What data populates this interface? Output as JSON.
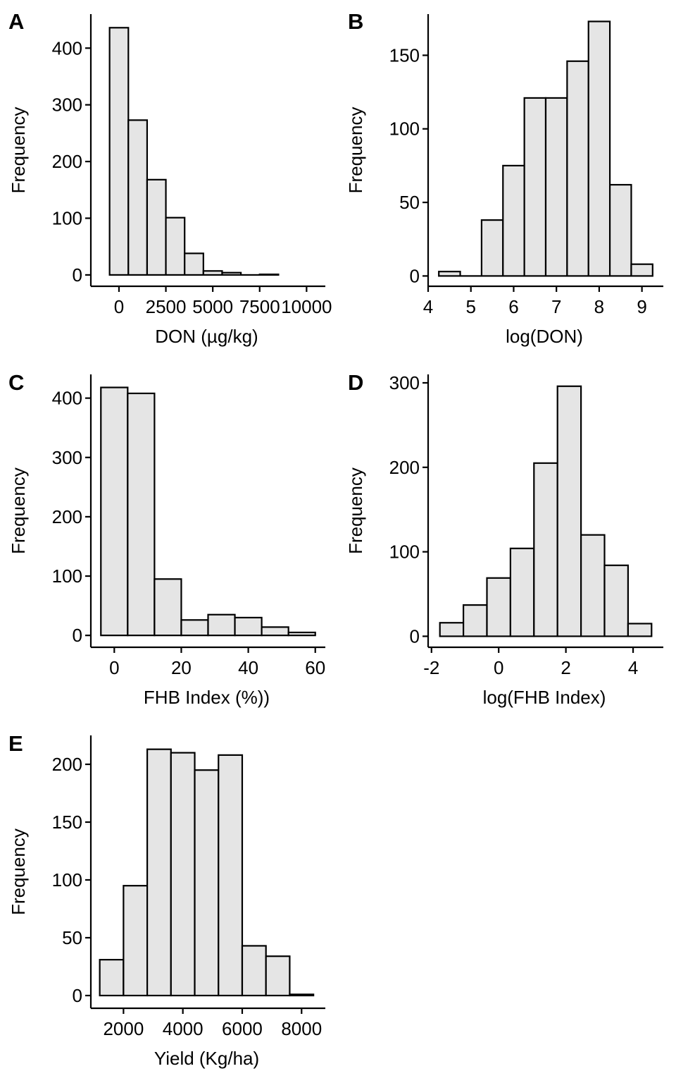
{
  "colors": {
    "bar_fill": "#e5e5e5",
    "bar_outline": "#000000",
    "axis": "#000000"
  },
  "chart_data": [
    {
      "type": "bar",
      "panel": "A",
      "xlabel": "DON (µg/kg)",
      "ylabel": "Frequency",
      "xlim": [
        -1500,
        11000
      ],
      "ylim": [
        -20,
        460
      ],
      "xticks": [
        0,
        2500,
        5000,
        7500,
        10000
      ],
      "xtick_labels": [
        "0",
        "2500",
        "5000",
        "7500",
        "10000"
      ],
      "yticks": [
        0,
        100,
        200,
        300,
        400
      ],
      "ytick_labels": [
        "0",
        "100",
        "200",
        "300",
        "400"
      ],
      "bins": [
        {
          "x0": -500,
          "x1": 500,
          "count": 436
        },
        {
          "x0": 500,
          "x1": 1500,
          "count": 273
        },
        {
          "x0": 1500,
          "x1": 2500,
          "count": 168
        },
        {
          "x0": 2500,
          "x1": 3500,
          "count": 101
        },
        {
          "x0": 3500,
          "x1": 4500,
          "count": 38
        },
        {
          "x0": 4500,
          "x1": 5500,
          "count": 7
        },
        {
          "x0": 5500,
          "x1": 6500,
          "count": 4
        },
        {
          "x0": 6500,
          "x1": 7500,
          "count": 0
        },
        {
          "x0": 7500,
          "x1": 8500,
          "count": 1
        }
      ]
    },
    {
      "type": "bar",
      "panel": "B",
      "xlabel": "log(DON)",
      "ylabel": "Frequency",
      "xlim": [
        4,
        9.5
      ],
      "ylim": [
        -7,
        178
      ],
      "xticks": [
        4,
        5,
        6,
        7,
        8,
        9
      ],
      "xtick_labels": [
        "4",
        "5",
        "6",
        "7",
        "8",
        "9"
      ],
      "yticks": [
        0,
        50,
        100,
        150
      ],
      "ytick_labels": [
        "0",
        "50",
        "100",
        "150"
      ],
      "bins": [
        {
          "x0": 4.25,
          "x1": 4.75,
          "count": 3
        },
        {
          "x0": 4.75,
          "x1": 5.25,
          "count": 0
        },
        {
          "x0": 5.25,
          "x1": 5.75,
          "count": 38
        },
        {
          "x0": 5.75,
          "x1": 6.25,
          "count": 75
        },
        {
          "x0": 6.25,
          "x1": 6.75,
          "count": 121
        },
        {
          "x0": 6.75,
          "x1": 7.25,
          "count": 121
        },
        {
          "x0": 7.25,
          "x1": 7.75,
          "count": 146
        },
        {
          "x0": 7.75,
          "x1": 8.25,
          "count": 173
        },
        {
          "x0": 8.25,
          "x1": 8.75,
          "count": 62
        },
        {
          "x0": 8.75,
          "x1": 9.25,
          "count": 8
        }
      ]
    },
    {
      "type": "bar",
      "panel": "C",
      "xlabel": "FHB Index (%))",
      "ylabel": "Frequency",
      "xlim": [
        -7,
        63
      ],
      "ylim": [
        -20,
        440
      ],
      "xticks": [
        0,
        20,
        40,
        60
      ],
      "xtick_labels": [
        "0",
        "20",
        "40",
        "60"
      ],
      "yticks": [
        0,
        100,
        200,
        300,
        400
      ],
      "ytick_labels": [
        "0",
        "100",
        "200",
        "300",
        "400"
      ],
      "bins": [
        {
          "x0": -4,
          "x1": 4,
          "count": 418
        },
        {
          "x0": 4,
          "x1": 12,
          "count": 408
        },
        {
          "x0": 12,
          "x1": 20,
          "count": 95
        },
        {
          "x0": 20,
          "x1": 28,
          "count": 26
        },
        {
          "x0": 28,
          "x1": 36,
          "count": 35
        },
        {
          "x0": 36,
          "x1": 44,
          "count": 30
        },
        {
          "x0": 44,
          "x1": 52,
          "count": 14
        },
        {
          "x0": 52,
          "x1": 60,
          "count": 5
        }
      ]
    },
    {
      "type": "bar",
      "panel": "D",
      "xlabel": "log(FHB Index)",
      "ylabel": "Frequency",
      "xlim": [
        -2.1,
        4.9
      ],
      "ylim": [
        -13,
        310
      ],
      "xticks": [
        -2,
        0,
        2,
        4
      ],
      "xtick_labels": [
        "-2",
        "0",
        "2",
        "4"
      ],
      "yticks": [
        0,
        100,
        200,
        300
      ],
      "ytick_labels": [
        "0",
        "100",
        "200",
        "300"
      ],
      "bins": [
        {
          "x0": -1.75,
          "x1": -1.05,
          "count": 16
        },
        {
          "x0": -1.05,
          "x1": -0.35,
          "count": 37
        },
        {
          "x0": -0.35,
          "x1": 0.35,
          "count": 69
        },
        {
          "x0": 0.35,
          "x1": 1.05,
          "count": 104
        },
        {
          "x0": 1.05,
          "x1": 1.75,
          "count": 205
        },
        {
          "x0": 1.75,
          "x1": 2.45,
          "count": 296
        },
        {
          "x0": 2.45,
          "x1": 3.15,
          "count": 120
        },
        {
          "x0": 3.15,
          "x1": 3.85,
          "count": 84
        },
        {
          "x0": 3.85,
          "x1": 4.55,
          "count": 15
        }
      ]
    },
    {
      "type": "bar",
      "panel": "E",
      "xlabel": "Yield (Kg/ha)",
      "ylabel": "Frequency",
      "xlim": [
        900,
        8800
      ],
      "ylim": [
        -11,
        225
      ],
      "xticks": [
        2000,
        4000,
        6000,
        8000
      ],
      "xtick_labels": [
        "2000",
        "4000",
        "6000",
        "8000"
      ],
      "yticks": [
        0,
        50,
        100,
        150,
        200
      ],
      "ytick_labels": [
        "0",
        "50",
        "100",
        "150",
        "200"
      ],
      "bins": [
        {
          "x0": 1200,
          "x1": 2000,
          "count": 31
        },
        {
          "x0": 2000,
          "x1": 2800,
          "count": 95
        },
        {
          "x0": 2800,
          "x1": 3600,
          "count": 213
        },
        {
          "x0": 3600,
          "x1": 4400,
          "count": 210
        },
        {
          "x0": 4400,
          "x1": 5200,
          "count": 195
        },
        {
          "x0": 5200,
          "x1": 6000,
          "count": 208
        },
        {
          "x0": 6000,
          "x1": 6800,
          "count": 43
        },
        {
          "x0": 6800,
          "x1": 7600,
          "count": 34
        },
        {
          "x0": 7600,
          "x1": 8400,
          "count": 1
        }
      ]
    }
  ]
}
